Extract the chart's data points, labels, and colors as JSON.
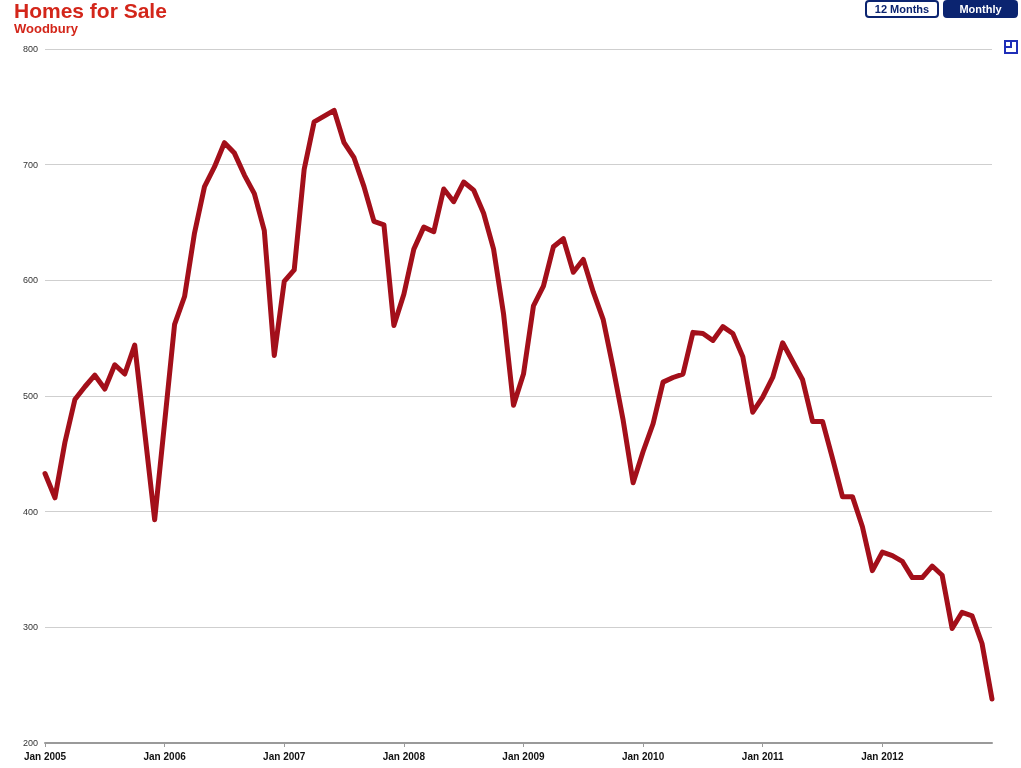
{
  "chart_data": {
    "type": "line",
    "title": "Homes for Sale",
    "subtitle": "Woodbury",
    "annotations": [
      "12 Months",
      "Monthly"
    ],
    "x": [
      "2005-01",
      "2005-02",
      "2005-03",
      "2005-04",
      "2005-05",
      "2005-06",
      "2005-07",
      "2005-08",
      "2005-09",
      "2005-10",
      "2005-11",
      "2005-12",
      "2006-01",
      "2006-02",
      "2006-03",
      "2006-04",
      "2006-05",
      "2006-06",
      "2006-07",
      "2006-08",
      "2006-09",
      "2006-10",
      "2006-11",
      "2006-12",
      "2007-01",
      "2007-02",
      "2007-03",
      "2007-04",
      "2007-05",
      "2007-06",
      "2007-07",
      "2007-08",
      "2007-09",
      "2007-10",
      "2007-11",
      "2007-12",
      "2008-01",
      "2008-02",
      "2008-03",
      "2008-04",
      "2008-05",
      "2008-06",
      "2008-07",
      "2008-08",
      "2008-09",
      "2008-10",
      "2008-11",
      "2008-12",
      "2009-01",
      "2009-02",
      "2009-03",
      "2009-04",
      "2009-05",
      "2009-06",
      "2009-07",
      "2009-08",
      "2009-09",
      "2009-10",
      "2009-11",
      "2009-12",
      "2010-01",
      "2010-02",
      "2010-03",
      "2010-04",
      "2010-05",
      "2010-06",
      "2010-07",
      "2010-08",
      "2010-09",
      "2010-10",
      "2010-11",
      "2010-12",
      "2011-01",
      "2011-02",
      "2011-03",
      "2011-04",
      "2011-05",
      "2011-06",
      "2011-07",
      "2011-08",
      "2011-09",
      "2011-10",
      "2011-11",
      "2011-12",
      "2012-01",
      "2012-02",
      "2012-03",
      "2012-04",
      "2012-05",
      "2012-06",
      "2012-07",
      "2012-08",
      "2012-09",
      "2012-10",
      "2012-11",
      "2012-12"
    ],
    "values": [
      433,
      412,
      460,
      497,
      508,
      518,
      506,
      527,
      519,
      544,
      469,
      393,
      477,
      562,
      586,
      641,
      681,
      698,
      719,
      710,
      691,
      675,
      643,
      535,
      599,
      609,
      696,
      737,
      742,
      747,
      719,
      706,
      681,
      651,
      648,
      561,
      588,
      627,
      646,
      642,
      679,
      668,
      685,
      678,
      658,
      627,
      571,
      492,
      519,
      578,
      595,
      629,
      636,
      607,
      618,
      590,
      566,
      524,
      479,
      425,
      452,
      476,
      512,
      516,
      519,
      555,
      554,
      548,
      560,
      554,
      534,
      486,
      499,
      516,
      546,
      530,
      514,
      478,
      478,
      446,
      413,
      413,
      387,
      349,
      365,
      362,
      357,
      343,
      343,
      353,
      345,
      299,
      313,
      310,
      286,
      238
    ],
    "color": "#a30f1a",
    "xlim": [
      "2005-01",
      "2012-12"
    ],
    "xticks": [
      {
        "value": "2005-01",
        "label": "Jan 2005"
      },
      {
        "value": "2006-01",
        "label": "Jan 2006"
      },
      {
        "value": "2007-01",
        "label": "Jan 2007"
      },
      {
        "value": "2008-01",
        "label": "Jan 2008"
      },
      {
        "value": "2009-01",
        "label": "Jan 2009"
      },
      {
        "value": "2010-01",
        "label": "Jan 2010"
      },
      {
        "value": "2011-01",
        "label": "Jan 2011"
      },
      {
        "value": "2012-01",
        "label": "Jan 2012"
      }
    ],
    "ylim": [
      200,
      800
    ],
    "yticks": [
      200,
      300,
      400,
      500,
      600,
      700,
      800
    ],
    "grid": "y",
    "marker": "none",
    "line_style": "solid"
  }
}
